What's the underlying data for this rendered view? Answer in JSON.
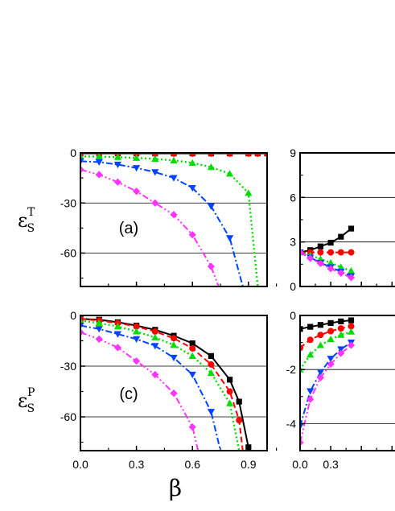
{
  "colors": {
    "black": "#000000",
    "red": "#ff0000",
    "green": "#00dd00",
    "blue": "#0044ff",
    "magenta": "#ff33ff"
  },
  "labels": {
    "x_symbol": "β",
    "eps": "ε",
    "sub_s": "S",
    "sup_t": "T",
    "sup_p": "P"
  },
  "chart_data": [
    {
      "panel": "a",
      "type": "line",
      "annotation": "(a)",
      "xlim": [
        0.0,
        1.0
      ],
      "ylim": [
        -80,
        0
      ],
      "y_ticks": [
        0,
        -30,
        -60
      ],
      "y_tick_labels": [
        "0",
        "-30",
        "-60"
      ],
      "x_tick_labels": [],
      "gridlines_y": [
        -30,
        -60
      ],
      "series": [
        {
          "color": "black",
          "marker": "square",
          "dash": "solid",
          "x": [
            0.0,
            0.1,
            0.2,
            0.3,
            0.4,
            0.5,
            0.6,
            0.7,
            0.8,
            0.9,
            0.95,
            1.0
          ],
          "y": [
            -0.3,
            -0.3,
            -0.3,
            -0.3,
            -0.3,
            -0.3,
            -0.3,
            -0.3,
            -0.3,
            -0.3,
            -0.3,
            -0.3
          ]
        },
        {
          "color": "red",
          "marker": "circle",
          "dash": "dash",
          "x": [
            0.0,
            0.1,
            0.2,
            0.3,
            0.4,
            0.5,
            0.6,
            0.7,
            0.8,
            0.9,
            0.95,
            1.0
          ],
          "y": [
            -0.4,
            -0.4,
            -0.4,
            -0.4,
            -0.4,
            -0.4,
            -0.4,
            -0.4,
            -0.4,
            -0.4,
            -0.4,
            -0.4
          ]
        },
        {
          "color": "green",
          "marker": "triangle-up",
          "dash": "dot",
          "x": [
            0.0,
            0.1,
            0.2,
            0.3,
            0.4,
            0.5,
            0.6,
            0.7,
            0.8,
            0.9,
            0.95
          ],
          "y": [
            -2,
            -2.2,
            -2.5,
            -3,
            -3.6,
            -4.5,
            -6,
            -8.5,
            -12.5,
            -24,
            -80
          ]
        },
        {
          "color": "blue",
          "marker": "triangle-down",
          "dash": "dashdot",
          "x": [
            0.0,
            0.1,
            0.2,
            0.3,
            0.4,
            0.5,
            0.6,
            0.7,
            0.8,
            0.87
          ],
          "y": [
            -5,
            -5.5,
            -7,
            -9,
            -11.5,
            -15,
            -21,
            -32,
            -51,
            -80
          ]
        },
        {
          "color": "magenta",
          "marker": "diamond",
          "dash": "dashdotdot",
          "x": [
            0.0,
            0.1,
            0.2,
            0.3,
            0.4,
            0.5,
            0.6,
            0.7,
            0.74
          ],
          "y": [
            -10,
            -13,
            -17.5,
            -23,
            -30,
            -37,
            -49,
            -68,
            -80
          ]
        }
      ]
    },
    {
      "panel": "b",
      "type": "line",
      "xlim": [
        0.0,
        1.0
      ],
      "ylim": [
        0,
        9
      ],
      "y_ticks": [
        0,
        3,
        6,
        9
      ],
      "y_tick_labels": [
        "0",
        "3",
        "6",
        "9"
      ],
      "x_tick_labels": [],
      "gridlines_y": [
        3,
        6
      ],
      "series": [
        {
          "color": "black",
          "marker": "square",
          "dash": "solid",
          "x": [
            0.0,
            0.1,
            0.2,
            0.3,
            0.4,
            0.5
          ],
          "y": [
            2.3,
            2.45,
            2.7,
            2.95,
            3.35,
            3.9
          ]
        },
        {
          "color": "red",
          "marker": "circle",
          "dash": "dash",
          "x": [
            0.0,
            0.1,
            0.2,
            0.3,
            0.4,
            0.5
          ],
          "y": [
            2.3,
            2.3,
            2.3,
            2.3,
            2.3,
            2.3
          ]
        },
        {
          "color": "green",
          "marker": "triangle-up",
          "dash": "dot",
          "x": [
            0.0,
            0.1,
            0.2,
            0.3,
            0.4,
            0.5
          ],
          "y": [
            2.3,
            2.1,
            1.85,
            1.6,
            1.3,
            1.05
          ]
        },
        {
          "color": "blue",
          "marker": "triangle-down",
          "dash": "dashdot",
          "x": [
            0.0,
            0.1,
            0.2,
            0.3,
            0.4,
            0.5
          ],
          "y": [
            2.3,
            1.95,
            1.6,
            1.3,
            1.0,
            0.7
          ]
        },
        {
          "color": "magenta",
          "marker": "diamond",
          "dash": "dashdotdot",
          "x": [
            0.0,
            0.1,
            0.2,
            0.3,
            0.4,
            0.5
          ],
          "y": [
            2.3,
            1.9,
            1.55,
            1.2,
            0.9,
            0.6
          ]
        }
      ]
    },
    {
      "panel": "c",
      "type": "line",
      "annotation": "(c)",
      "xlim": [
        0.0,
        1.0
      ],
      "ylim": [
        -80,
        0
      ],
      "y_ticks": [
        0,
        -30,
        -60
      ],
      "y_tick_labels": [
        "0",
        "-30",
        "-60"
      ],
      "x_ticks": [
        0.0,
        0.3,
        0.6,
        0.9
      ],
      "x_tick_labels": [
        "0.0",
        "0.3",
        "0.6",
        "0.9"
      ],
      "gridlines_y": [
        -30,
        -60
      ],
      "series": [
        {
          "color": "black",
          "marker": "square",
          "dash": "solid",
          "x": [
            0.0,
            0.1,
            0.2,
            0.3,
            0.4,
            0.5,
            0.6,
            0.7,
            0.8,
            0.85,
            0.9,
            0.91
          ],
          "y": [
            -2,
            -2.5,
            -4,
            -6,
            -8.5,
            -12,
            -16.5,
            -24,
            -38,
            -51,
            -78,
            -80
          ]
        },
        {
          "color": "red",
          "marker": "circle",
          "dash": "dash",
          "x": [
            0.0,
            0.1,
            0.2,
            0.3,
            0.4,
            0.5,
            0.6,
            0.7,
            0.8,
            0.85,
            0.87
          ],
          "y": [
            -2,
            -3,
            -4.5,
            -6.5,
            -9.5,
            -13.5,
            -19.5,
            -29,
            -45,
            -62,
            -80
          ]
        },
        {
          "color": "green",
          "marker": "triangle-up",
          "dash": "dot",
          "x": [
            0.0,
            0.1,
            0.2,
            0.3,
            0.4,
            0.5,
            0.6,
            0.7,
            0.8,
            0.85
          ],
          "y": [
            -3,
            -4.5,
            -6.5,
            -9.5,
            -13,
            -17.5,
            -24,
            -34,
            -52,
            -80
          ]
        },
        {
          "color": "blue",
          "marker": "triangle-down",
          "dash": "dashdot",
          "x": [
            0.0,
            0.1,
            0.2,
            0.3,
            0.4,
            0.5,
            0.6,
            0.7,
            0.75
          ],
          "y": [
            -6,
            -8,
            -11,
            -14,
            -18,
            -25,
            -35,
            -57,
            -80
          ]
        },
        {
          "color": "magenta",
          "marker": "diamond",
          "dash": "dashdotdot",
          "x": [
            0.0,
            0.1,
            0.2,
            0.3,
            0.4,
            0.5,
            0.6,
            0.63
          ],
          "y": [
            -10,
            -14,
            -19,
            -27,
            -35,
            -46,
            -66,
            -80
          ]
        }
      ]
    },
    {
      "panel": "d",
      "type": "line",
      "xlim": [
        0.0,
        1.0
      ],
      "ylim": [
        -5,
        0
      ],
      "y_ticks": [
        0,
        -2,
        -4
      ],
      "y_tick_labels": [
        "0",
        "-2",
        "-4"
      ],
      "x_ticks": [
        0.0,
        0.3
      ],
      "x_tick_labels": [
        "0.0",
        "0.3"
      ],
      "gridlines_y": [
        -2,
        -4
      ],
      "series": [
        {
          "color": "black",
          "marker": "square",
          "dash": "solid",
          "x": [
            0.0,
            0.1,
            0.2,
            0.3,
            0.4,
            0.5
          ],
          "y": [
            -0.5,
            -0.42,
            -0.35,
            -0.28,
            -0.22,
            -0.18
          ]
        },
        {
          "color": "red",
          "marker": "circle",
          "dash": "dash",
          "x": [
            0.0,
            0.1,
            0.2,
            0.3,
            0.4,
            0.5
          ],
          "y": [
            -1.2,
            -0.9,
            -0.72,
            -0.58,
            -0.48,
            -0.4
          ]
        },
        {
          "color": "green",
          "marker": "triangle-up",
          "dash": "dot",
          "x": [
            0.0,
            0.1,
            0.2,
            0.3,
            0.4,
            0.5
          ],
          "y": [
            -2.0,
            -1.45,
            -1.1,
            -0.88,
            -0.72,
            -0.6
          ]
        },
        {
          "color": "blue",
          "marker": "triangle-down",
          "dash": "dashdot",
          "x": [
            0.0,
            0.1,
            0.2,
            0.3,
            0.4,
            0.5
          ],
          "y": [
            -4.1,
            -2.8,
            -2.1,
            -1.6,
            -1.25,
            -1.0
          ]
        },
        {
          "color": "magenta",
          "marker": "diamond",
          "dash": "dashdotdot",
          "x": [
            0.0,
            0.1,
            0.2,
            0.3,
            0.4,
            0.5
          ],
          "y": [
            -4.7,
            -3.1,
            -2.3,
            -1.8,
            -1.4,
            -1.1
          ]
        }
      ]
    }
  ]
}
